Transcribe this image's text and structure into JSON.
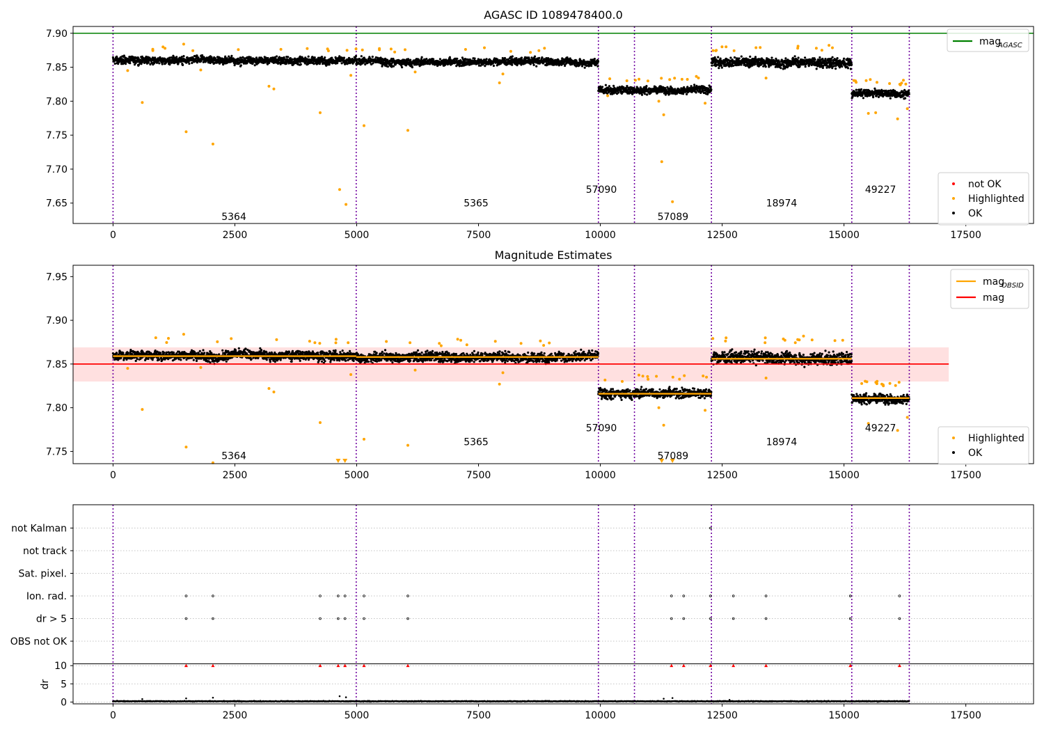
{
  "chart_data": [
    {
      "type": "scatter",
      "title": "AGASC ID 1089478400.0",
      "xlim": [
        -820,
        18890
      ],
      "ylim": [
        7.62,
        7.91
      ],
      "xticks": [
        0,
        2500,
        5000,
        7500,
        10000,
        12500,
        15000,
        17500
      ],
      "xtick_labels": [
        "0",
        "2500",
        "5000",
        "7500",
        "10000",
        "12500",
        "15000",
        "17500"
      ],
      "yticks": [
        7.65,
        7.7,
        7.75,
        7.8,
        7.85,
        7.9
      ],
      "ytick_labels": [
        "7.65",
        "7.70",
        "7.75",
        "7.80",
        "7.85",
        "7.90"
      ],
      "obs_boundaries": [
        0,
        4990,
        9960,
        10700,
        12280,
        15160,
        16340
      ],
      "obs_labels": [
        {
          "text": "5364",
          "x": 2480,
          "y": 7.63
        },
        {
          "text": "5365",
          "x": 7450,
          "y": 7.65
        },
        {
          "text": "57090",
          "x": 10020,
          "y": 7.67
        },
        {
          "text": "57089",
          "x": 11490,
          "y": 7.63
        },
        {
          "text": "18974",
          "x": 13720,
          "y": 7.65
        },
        {
          "text": "49227",
          "x": 15750,
          "y": 7.67
        }
      ],
      "mag_agasc": 7.9,
      "ok_segments": [
        {
          "x": [
            0,
            4990
          ],
          "level": 7.86,
          "spread": 0.008
        },
        {
          "x": [
            4990,
            9960
          ],
          "level": 7.858,
          "spread": 0.008
        },
        {
          "x": [
            9960,
            12280
          ],
          "level": 7.817,
          "spread": 0.008
        },
        {
          "x": [
            12280,
            15160
          ],
          "level": 7.857,
          "spread": 0.01
        },
        {
          "x": [
            15160,
            16340
          ],
          "level": 7.811,
          "spread": 0.008
        }
      ],
      "highlighted_points": [
        [
          600,
          7.798
        ],
        [
          1500,
          7.755
        ],
        [
          2050,
          7.737
        ],
        [
          3200,
          7.822
        ],
        [
          3300,
          7.818
        ],
        [
          4250,
          7.783
        ],
        [
          4650,
          7.67
        ],
        [
          4780,
          7.648
        ],
        [
          4880,
          7.838
        ],
        [
          5150,
          7.764
        ],
        [
          6050,
          7.757
        ],
        [
          7930,
          7.827
        ],
        [
          11300,
          7.78
        ],
        [
          11260,
          7.711
        ],
        [
          11480,
          7.652
        ],
        [
          11200,
          7.8
        ],
        [
          12150,
          7.797
        ],
        [
          13400,
          7.834
        ],
        [
          15500,
          7.782
        ],
        [
          15650,
          7.783
        ],
        [
          16100,
          7.774
        ],
        [
          16300,
          7.789
        ],
        [
          1450,
          7.884
        ],
        [
          12580,
          7.88
        ],
        [
          300,
          7.845
        ],
        [
          1800,
          7.846
        ],
        [
          6200,
          7.843
        ],
        [
          8000,
          7.84
        ],
        [
          10150,
          7.808
        ],
        [
          14050,
          7.878
        ]
      ],
      "legend_main": [
        {
          "name": "mag",
          "subscript": "AGASC",
          "color": "#008000"
        }
      ],
      "legend_points": [
        {
          "name": "not OK",
          "color": "#ff0000"
        },
        {
          "name": "Highlighted",
          "color": "#ffa500"
        },
        {
          "name": "OK",
          "color": "#000000"
        }
      ]
    },
    {
      "type": "scatter",
      "title": "Magnitude Estimates",
      "xlim": [
        -820,
        18890
      ],
      "ylim": [
        7.736,
        7.963
      ],
      "xticks": [
        0,
        2500,
        5000,
        7500,
        10000,
        12500,
        15000,
        17500
      ],
      "xtick_labels": [
        "0",
        "2500",
        "5000",
        "7500",
        "10000",
        "12500",
        "15000",
        "17500"
      ],
      "yticks": [
        7.75,
        7.8,
        7.85,
        7.9,
        7.95
      ],
      "ytick_labels": [
        "7.75",
        "7.80",
        "7.85",
        "7.90",
        "7.95"
      ],
      "obs_boundaries": [
        0,
        4990,
        9960,
        10700,
        12280,
        15160,
        16340
      ],
      "obs_labels": [
        {
          "text": "5364",
          "x": 2480,
          "y": 7.745
        },
        {
          "text": "5365",
          "x": 7450,
          "y": 7.761
        },
        {
          "text": "57090",
          "x": 10020,
          "y": 7.777
        },
        {
          "text": "57089",
          "x": 11490,
          "y": 7.745
        },
        {
          "text": "18974",
          "x": 13720,
          "y": 7.761
        },
        {
          "text": "49227",
          "x": 15750,
          "y": 7.777
        }
      ],
      "mag": 7.85,
      "mag_band": [
        7.83,
        7.869
      ],
      "mag_line_x": [
        -820,
        17150
      ],
      "mag_obsid": [
        {
          "x": [
            0,
            4990
          ],
          "value": 7.859
        },
        {
          "x": [
            4990,
            9960
          ],
          "value": 7.858
        },
        {
          "x": [
            9960,
            12280
          ],
          "value": 7.816
        },
        {
          "x": [
            12280,
            15160
          ],
          "value": 7.856
        },
        {
          "x": [
            15160,
            16340
          ],
          "value": 7.811
        }
      ],
      "ok_segments": [
        {
          "x": [
            0,
            4990
          ],
          "level": 7.86,
          "spread": 0.008
        },
        {
          "x": [
            4990,
            9960
          ],
          "level": 7.858,
          "spread": 0.008
        },
        {
          "x": [
            9960,
            12280
          ],
          "level": 7.817,
          "spread": 0.008
        },
        {
          "x": [
            12280,
            15160
          ],
          "level": 7.857,
          "spread": 0.01
        },
        {
          "x": [
            15160,
            16340
          ],
          "level": 7.811,
          "spread": 0.008
        }
      ],
      "highlighted_points": [
        [
          600,
          7.798
        ],
        [
          1500,
          7.755
        ],
        [
          2050,
          7.737
        ],
        [
          3200,
          7.822
        ],
        [
          3300,
          7.818
        ],
        [
          4250,
          7.783
        ],
        [
          4880,
          7.838
        ],
        [
          5150,
          7.764
        ],
        [
          6050,
          7.757
        ],
        [
          7930,
          7.827
        ],
        [
          11300,
          7.78
        ],
        [
          11200,
          7.8
        ],
        [
          12150,
          7.797
        ],
        [
          13400,
          7.834
        ],
        [
          15500,
          7.782
        ],
        [
          16100,
          7.774
        ],
        [
          16300,
          7.789
        ],
        [
          1450,
          7.884
        ],
        [
          12580,
          7.88
        ],
        [
          300,
          7.845
        ],
        [
          1800,
          7.846
        ],
        [
          6200,
          7.843
        ],
        [
          8000,
          7.84
        ],
        [
          14050,
          7.878
        ]
      ],
      "offscale_markers": [
        4620,
        4760,
        11260,
        11480
      ],
      "legend_main": [
        {
          "name": "mag",
          "subscript": "OBSID",
          "color": "#ffa500"
        },
        {
          "name": "mag",
          "subscript": "",
          "color": "#ff0000"
        }
      ],
      "legend_points": [
        {
          "name": "Highlighted",
          "color": "#ffa500"
        },
        {
          "name": "OK",
          "color": "#000000"
        }
      ]
    },
    {
      "type": "scatter",
      "title": "",
      "xlim": [
        -820,
        18890
      ],
      "xticks": [
        0,
        2500,
        5000,
        7500,
        10000,
        12500,
        15000,
        17500
      ],
      "xtick_labels": [
        "0",
        "2500",
        "5000",
        "7500",
        "10000",
        "12500",
        "15000",
        "17500"
      ],
      "flag_labels": [
        "not Kalman",
        "not track",
        "Sat. pixel.",
        "Ion. rad.",
        "dr > 5",
        "OBS not OK"
      ],
      "obs_boundaries": [
        0,
        4990,
        9960,
        10700,
        12280,
        15160,
        16340
      ],
      "flagged_x": [
        1500,
        2050,
        4250,
        4620,
        4760,
        5150,
        6050,
        11460,
        11710,
        12260,
        12730,
        13400,
        15130,
        16140
      ],
      "not_kalman_x": [
        12260
      ],
      "dr_ylabel": "dr",
      "dr_yticks": [
        0,
        5,
        10
      ],
      "dr_ylim": [
        -0.5,
        10.5
      ],
      "dr_baseline": 0.2,
      "dr_points": [
        [
          1500,
          1.0
        ],
        [
          2050,
          1.2
        ],
        [
          4650,
          1.6
        ],
        [
          4780,
          1.3
        ],
        [
          600,
          0.8
        ],
        [
          11300,
          0.9
        ],
        [
          11480,
          1.1
        ],
        [
          12650,
          0.6
        ]
      ]
    }
  ]
}
